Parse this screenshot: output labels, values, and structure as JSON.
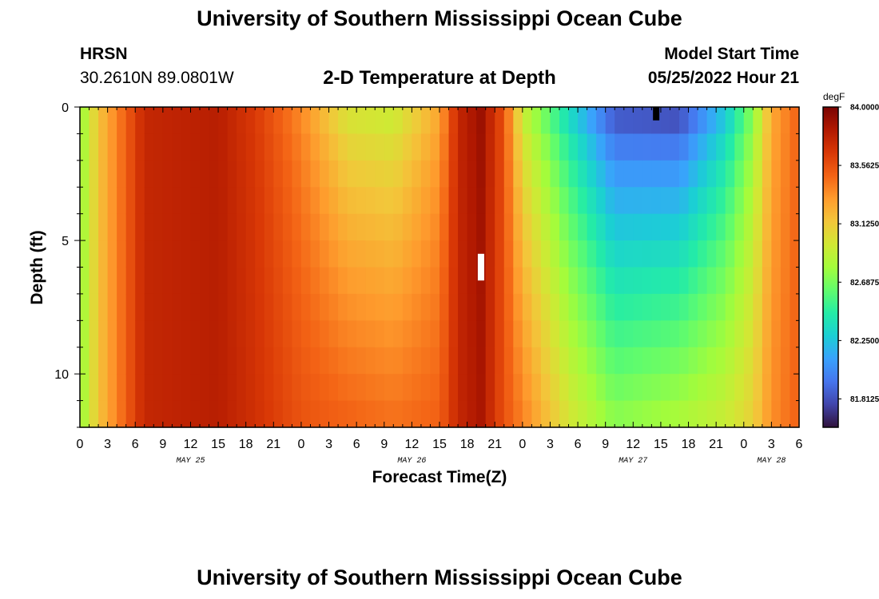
{
  "header": {
    "title": "University of Southern Mississippi Ocean Cube",
    "station_id": "HRSN",
    "coordinates": "30.2610N  89.0801W",
    "plot_title": "2-D Temperature at Depth",
    "model_start_label": "Model Start Time",
    "model_start_value": "05/25/2022 Hour 21"
  },
  "footer": {
    "title": "University of Southern Mississippi Ocean Cube"
  },
  "chart_data": {
    "type": "heatmap",
    "title": "2-D Temperature at Depth",
    "xlabel": "Forecast Time(Z)",
    "ylabel": "Depth (ft)",
    "x_ticks": [
      "0",
      "3",
      "6",
      "9",
      "12",
      "15",
      "18",
      "21",
      "0",
      "3",
      "6",
      "9",
      "12",
      "15",
      "18",
      "21",
      "0",
      "3",
      "6",
      "9",
      "12",
      "15",
      "18",
      "21",
      "0",
      "3",
      "6"
    ],
    "x_range_hours": [
      0,
      78
    ],
    "date_labels": [
      {
        "label": "MAY 25",
        "hour": 12
      },
      {
        "label": "MAY 26",
        "hour": 36
      },
      {
        "label": "MAY 27",
        "hour": 60
      },
      {
        "label": "MAY 28",
        "hour": 75
      }
    ],
    "y_ticks": [
      "0",
      "5",
      "10"
    ],
    "y_tick_values": [
      0,
      5,
      10
    ],
    "y_range": [
      0,
      12
    ],
    "colorbar": {
      "unit": "degF",
      "labels": [
        "84.0000",
        "83.5625",
        "83.1250",
        "82.6875",
        "82.2500",
        "81.8125"
      ],
      "label_values": [
        84.0,
        83.5625,
        83.125,
        82.6875,
        82.25,
        81.8125
      ],
      "min": 81.6,
      "max": 84.0,
      "colors": [
        "#30123b",
        "#4145ab",
        "#4675ed",
        "#39a2fc",
        "#1bcfd4",
        "#24eca6",
        "#61fc6c",
        "#a4fc3b",
        "#d1e834",
        "#f3c63a",
        "#fe9b2d",
        "#f36315",
        "#d93806",
        "#b11901",
        "#7a0402"
      ]
    },
    "keyframes": [
      {
        "hour": 0,
        "surface": 82.75,
        "bottom": 82.75
      },
      {
        "hour": 2,
        "surface": 83.15,
        "bottom": 83.15
      },
      {
        "hour": 4.5,
        "surface": 83.45,
        "bottom": 83.45
      },
      {
        "hour": 7,
        "surface": 83.75,
        "bottom": 83.75
      },
      {
        "hour": 15,
        "surface": 83.8,
        "bottom": 83.8
      },
      {
        "hour": 19,
        "surface": 83.65,
        "bottom": 83.7
      },
      {
        "hour": 24,
        "surface": 83.35,
        "bottom": 83.55
      },
      {
        "hour": 29,
        "surface": 82.95,
        "bottom": 83.5
      },
      {
        "hour": 34,
        "surface": 82.9,
        "bottom": 83.45
      },
      {
        "hour": 39,
        "surface": 83.25,
        "bottom": 83.5
      },
      {
        "hour": 41,
        "surface": 83.75,
        "bottom": 83.75
      },
      {
        "hour": 43.5,
        "surface": 83.9,
        "bottom": 83.85
      },
      {
        "hour": 46,
        "surface": 83.55,
        "bottom": 83.55
      },
      {
        "hour": 48,
        "surface": 82.9,
        "bottom": 83.4
      },
      {
        "hour": 53,
        "surface": 82.3,
        "bottom": 83.0
      },
      {
        "hour": 58,
        "surface": 81.75,
        "bottom": 82.75
      },
      {
        "hour": 65,
        "surface": 81.7,
        "bottom": 82.85
      },
      {
        "hour": 70,
        "surface": 82.2,
        "bottom": 82.95
      },
      {
        "hour": 73,
        "surface": 82.7,
        "bottom": 83.1
      },
      {
        "hour": 75,
        "surface": 83.25,
        "bottom": 83.35
      },
      {
        "hour": 78,
        "surface": 83.5,
        "bottom": 83.5
      }
    ],
    "markers": [
      {
        "hour": 43.5,
        "depth_from": 5.5,
        "depth_to": 6.5,
        "color": "#ffffff"
      },
      {
        "hour": 62.5,
        "depth_from": 0.0,
        "depth_to": 0.5,
        "color": "#000000"
      }
    ]
  }
}
